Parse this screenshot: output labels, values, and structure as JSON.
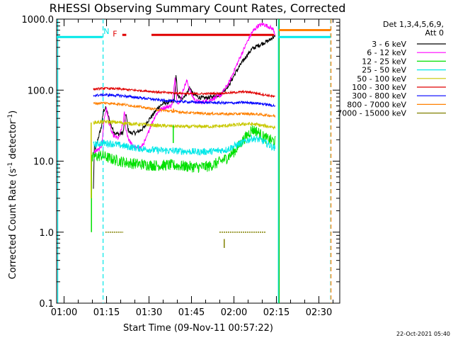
{
  "chart_data": {
    "type": "line",
    "title": "RHESSI Observing Summary Count Rates, Corrected",
    "xlabel": "Start Time (09-Nov-11 00:57:22)",
    "ylabel_main": "Corrected Count Rate (s",
    "ylabel_sup1": "-1",
    "ylabel_mid": " detector",
    "ylabel_sup2": "-1",
    "ylabel_end": ")",
    "x_unit": "minutes after 00:57:22",
    "xlim": [
      0,
      100
    ],
    "ylim": [
      0.1,
      1000
    ],
    "yscale": "log",
    "x_ticks": [
      {
        "x": 2.63,
        "label": "01:00"
      },
      {
        "x": 17.63,
        "label": "01:15"
      },
      {
        "x": 32.63,
        "label": "01:30"
      },
      {
        "x": 47.63,
        "label": "01:45"
      },
      {
        "x": 62.63,
        "label": "02:00"
      },
      {
        "x": 77.63,
        "label": "02:15"
      },
      {
        "x": 92.63,
        "label": "02:30"
      }
    ],
    "y_ticks": [
      {
        "y": 1000,
        "label": "1000.0"
      },
      {
        "y": 100,
        "label": "100.0"
      },
      {
        "y": 10,
        "label": "10.0"
      },
      {
        "y": 1,
        "label": "1.0"
      },
      {
        "y": 0.1,
        "label": "0.1"
      }
    ],
    "legend": {
      "placement": "right",
      "header1": "Det 1,3,4,5,6,9,",
      "header2": "Att 0",
      "entries": [
        {
          "name": "3 - 6 keV",
          "color": "#000000"
        },
        {
          "name": "6 - 12 keV",
          "color": "#ff00ff"
        },
        {
          "name": "12 - 25 keV",
          "color": "#00e000"
        },
        {
          "name": "25 - 50 keV",
          "color": "#00e8e8"
        },
        {
          "name": "50 - 100 keV",
          "color": "#c8c800"
        },
        {
          "name": "100 - 300 keV",
          "color": "#e00000"
        },
        {
          "name": "300 - 800 keV",
          "color": "#0000ff"
        },
        {
          "name": "800 - 7000 keV",
          "color": "#ff8000"
        },
        {
          "name": "7000 - 15000 keV",
          "color": "#808000"
        }
      ]
    },
    "series": [
      {
        "color": "#000000",
        "noise": 0.03,
        "points": [
          [
            13,
            4
          ],
          [
            13.3,
            16
          ],
          [
            13.8,
            15
          ],
          [
            14.5,
            20
          ],
          [
            15.8,
            30
          ],
          [
            16.6,
            52
          ],
          [
            17.4,
            56
          ],
          [
            18.5,
            40
          ],
          [
            19.5,
            30
          ],
          [
            20.5,
            25
          ],
          [
            22,
            24
          ],
          [
            23.5,
            25
          ],
          [
            24.5,
            48
          ],
          [
            25.2,
            28
          ],
          [
            26,
            25
          ],
          [
            28,
            25
          ],
          [
            29.5,
            27
          ],
          [
            31,
            30
          ],
          [
            32,
            36
          ],
          [
            34,
            45
          ],
          [
            36,
            58
          ],
          [
            38,
            66
          ],
          [
            40,
            68
          ],
          [
            41.5,
            70
          ],
          [
            42.2,
            160
          ],
          [
            42.8,
            82
          ],
          [
            44,
            75
          ],
          [
            46,
            90
          ],
          [
            47,
            110
          ],
          [
            48,
            90
          ],
          [
            50,
            80
          ],
          [
            52,
            77
          ],
          [
            55,
            80
          ],
          [
            58,
            88
          ],
          [
            61,
            120
          ],
          [
            63,
            170
          ],
          [
            65,
            230
          ],
          [
            67,
            300
          ],
          [
            69,
            380
          ],
          [
            71,
            420
          ],
          [
            73,
            460
          ],
          [
            75,
            500
          ],
          [
            76.5,
            560
          ],
          [
            77.3,
            560
          ]
        ]
      },
      {
        "color": "#ff00ff",
        "noise": 0.03,
        "points": [
          [
            13,
            13
          ],
          [
            14,
            14
          ],
          [
            15,
            14.5
          ],
          [
            16,
            17
          ],
          [
            16.8,
            40
          ],
          [
            17.6,
            55
          ],
          [
            18.5,
            35
          ],
          [
            19.5,
            25
          ],
          [
            20.5,
            22
          ],
          [
            22,
            21
          ],
          [
            23.5,
            35
          ],
          [
            24,
            50
          ],
          [
            24.5,
            28
          ],
          [
            25.5,
            20
          ],
          [
            27,
            16
          ],
          [
            28.5,
            15
          ],
          [
            30,
            16
          ],
          [
            31.5,
            20
          ],
          [
            33,
            30
          ],
          [
            35,
            45
          ],
          [
            37,
            55
          ],
          [
            39,
            58
          ],
          [
            40.5,
            60
          ],
          [
            41,
            70
          ],
          [
            41.8,
            150
          ],
          [
            42.5,
            70
          ],
          [
            43.5,
            65
          ],
          [
            45,
            110
          ],
          [
            46,
            135
          ],
          [
            47.5,
            90
          ],
          [
            49,
            70
          ],
          [
            51,
            67
          ],
          [
            54,
            72
          ],
          [
            58,
            85
          ],
          [
            61,
            130
          ],
          [
            63,
            200
          ],
          [
            65,
            300
          ],
          [
            67,
            450
          ],
          [
            69,
            650
          ],
          [
            71,
            800
          ],
          [
            73,
            850
          ],
          [
            75,
            780
          ],
          [
            76.5,
            720
          ],
          [
            77.3,
            600
          ]
        ]
      },
      {
        "color": "#00e000",
        "noise": 0.08,
        "points": [
          [
            12.3,
            10
          ],
          [
            13,
            11.5
          ],
          [
            16,
            12
          ],
          [
            20,
            10.5
          ],
          [
            25,
            9.5
          ],
          [
            30,
            9.0
          ],
          [
            35,
            8.7
          ],
          [
            40,
            8.8
          ],
          [
            45,
            8.5
          ],
          [
            50,
            8.2
          ],
          [
            54,
            8.5
          ],
          [
            57,
            9.5
          ],
          [
            60,
            11
          ],
          [
            63,
            14
          ],
          [
            66,
            20
          ],
          [
            69,
            28
          ],
          [
            71,
            26
          ],
          [
            73,
            22
          ],
          [
            75,
            20
          ],
          [
            77.3,
            19
          ]
        ]
      },
      {
        "color": "#00e8e8",
        "noise": 0.05,
        "points": [
          [
            13,
            17
          ],
          [
            16,
            18
          ],
          [
            20,
            17.5
          ],
          [
            25,
            16
          ],
          [
            30,
            15
          ],
          [
            35,
            14.3
          ],
          [
            40,
            14
          ],
          [
            45,
            13.8
          ],
          [
            50,
            13.5
          ],
          [
            55,
            13.8
          ],
          [
            60,
            14.5
          ],
          [
            63,
            16.5
          ],
          [
            66,
            18.5
          ],
          [
            69,
            21
          ],
          [
            72,
            20
          ],
          [
            75,
            17
          ],
          [
            77.3,
            15
          ]
        ]
      },
      {
        "color": "#c8c800",
        "noise": 0.025,
        "points": [
          [
            13,
            35
          ],
          [
            17,
            36
          ],
          [
            22,
            35
          ],
          [
            27,
            33.5
          ],
          [
            32,
            32.5
          ],
          [
            37,
            31.5
          ],
          [
            42,
            31
          ],
          [
            47,
            30.5
          ],
          [
            52,
            30.8
          ],
          [
            57,
            31
          ],
          [
            62,
            32
          ],
          [
            67,
            33.5
          ],
          [
            70,
            33
          ],
          [
            73,
            31.5
          ],
          [
            77.3,
            30
          ]
        ]
      },
      {
        "color": "#e00000",
        "noise": 0.015,
        "points": [
          [
            13,
            103
          ],
          [
            17,
            106
          ],
          [
            22,
            104
          ],
          [
            27,
            100
          ],
          [
            32,
            97
          ],
          [
            37,
            93
          ],
          [
            42,
            91
          ],
          [
            47,
            89
          ],
          [
            52,
            89
          ],
          [
            57,
            90
          ],
          [
            62,
            92
          ],
          [
            66,
            95
          ],
          [
            69,
            93
          ],
          [
            72,
            88
          ],
          [
            75,
            84
          ],
          [
            77.3,
            80
          ]
        ]
      },
      {
        "color": "#0000ff",
        "noise": 0.018,
        "points": [
          [
            13,
            84
          ],
          [
            17,
            86
          ],
          [
            22,
            84
          ],
          [
            27,
            80
          ],
          [
            32,
            76
          ],
          [
            37,
            72
          ],
          [
            42,
            70
          ],
          [
            47,
            68
          ],
          [
            52,
            67
          ],
          [
            57,
            66.5
          ],
          [
            62,
            66
          ],
          [
            66,
            67
          ],
          [
            70,
            66
          ],
          [
            74,
            63
          ],
          [
            77.3,
            60
          ]
        ]
      },
      {
        "color": "#ff8000",
        "noise": 0.018,
        "points": [
          [
            13,
            65
          ],
          [
            17,
            66
          ],
          [
            22,
            64
          ],
          [
            27,
            60
          ],
          [
            32,
            56
          ],
          [
            37,
            52
          ],
          [
            42,
            50
          ],
          [
            47,
            48
          ],
          [
            52,
            47
          ],
          [
            57,
            46.5
          ],
          [
            62,
            46
          ],
          [
            66,
            46.5
          ],
          [
            70,
            46
          ],
          [
            74,
            44.5
          ],
          [
            77.3,
            43
          ]
        ]
      }
    ],
    "spikes": [
      {
        "x": 12.3,
        "y1": 1,
        "y2": 10,
        "color": "#00e000"
      },
      {
        "x": 12.2,
        "y1": 3,
        "y2": 35,
        "color": "#c8c800"
      },
      {
        "x": 41.2,
        "y1": 18,
        "y2": 32,
        "color": "#00e000"
      },
      {
        "x": 41.3,
        "y1": 48,
        "y2": 55,
        "color": "#ff8000"
      },
      {
        "x": 59.2,
        "y1": 0.6,
        "y2": 0.8,
        "color": "#808000"
      }
    ],
    "segments": [
      {
        "color": "#808000",
        "y": 1.0,
        "x": [
          [
            17.2,
            23.5
          ],
          [
            57.5,
            74
          ]
        ],
        "dashed": true
      },
      {
        "color": "#e00000",
        "y": 600,
        "x": [
          [
            23.2,
            24.6
          ],
          [
            33.5,
            76.8
          ]
        ],
        "dashed": false
      },
      {
        "color": "#00e8e8",
        "y": 560,
        "x": [
          [
            0,
            16.2
          ],
          [
            78.5,
            96.8
          ]
        ],
        "dashed": false
      },
      {
        "color": "#ff8000",
        "y": 700,
        "x": [
          [
            78.5,
            96.8
          ]
        ],
        "dashed": false
      }
    ],
    "flags": [
      {
        "label": "N",
        "x": 17.6,
        "y": 620,
        "color": "#00e8e8"
      },
      {
        "label": "F",
        "x": 20.6,
        "y": 570,
        "color": "#e00000"
      }
    ],
    "vlines": [
      {
        "x": 0.4,
        "color": "#00e8e8",
        "dashed": false
      },
      {
        "x": 16.4,
        "color": "#00e8e8",
        "dashed": true
      },
      {
        "x": 78.3,
        "color": "#00e8e8",
        "dashed": false
      },
      {
        "x": 78.6,
        "color": "#00c000",
        "dashed": false
      },
      {
        "x": 96.8,
        "color": "#00e8e8",
        "dashed": true
      },
      {
        "x": 96.9,
        "color": "#ff8000",
        "dashed": true
      }
    ]
  },
  "footer": {
    "timestamp": "22-Oct-2021 05:40"
  }
}
